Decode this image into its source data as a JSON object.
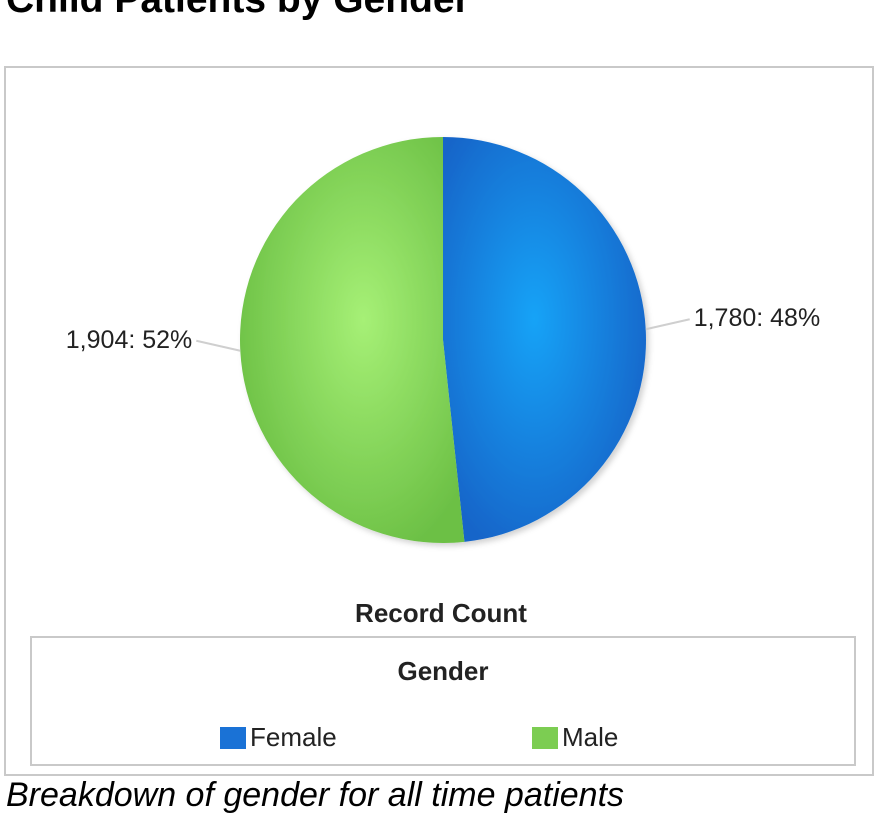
{
  "page": {
    "title": "Child Patients by Gender",
    "caption": "Breakdown of gender for all time patients"
  },
  "chart_data": {
    "type": "pie",
    "measure": "Record Count",
    "legend_title": "Gender",
    "legend_position": "bottom",
    "slices": [
      {
        "name": "Female",
        "value": 1780,
        "percent": 48,
        "label": "1,780: 48%",
        "color": "#1a72d6"
      },
      {
        "name": "Male",
        "value": 1904,
        "percent": 52,
        "label": "1,904: 52%",
        "color": "#7ccd52"
      }
    ]
  }
}
